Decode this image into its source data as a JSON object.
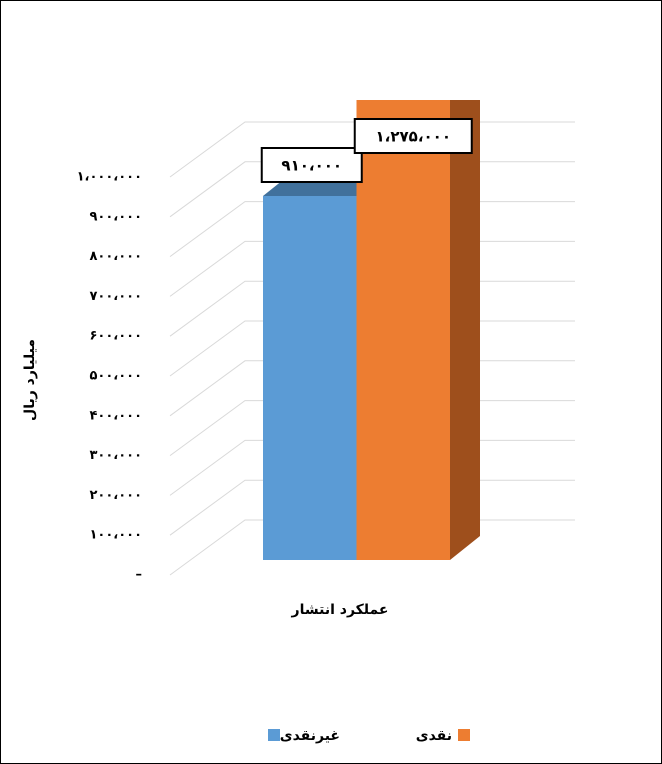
{
  "chart_data": {
    "type": "bar3d",
    "y_label": "میلیارد ریال",
    "categories": [
      "عملکرد انتشار"
    ],
    "series": [
      {
        "name": "غیرنقدی",
        "color": "#5b9bd5",
        "side_color": "#41719c",
        "values": [
          910000
        ],
        "value_labels": [
          "۹۱۰،۰۰۰"
        ]
      },
      {
        "name": "نقدی",
        "color": "#ed7d31",
        "side_color": "#9e4f1c",
        "values": [
          1275000
        ],
        "value_labels": [
          "۱،۲۷۵،۰۰۰"
        ]
      }
    ],
    "ylim": [
      0,
      1000000
    ],
    "yticks": [
      {
        "value": 0,
        "label": "–"
      },
      {
        "value": 100000,
        "label": "۱۰۰،۰۰۰"
      },
      {
        "value": 200000,
        "label": "۲۰۰،۰۰۰"
      },
      {
        "value": 300000,
        "label": "۳۰۰،۰۰۰"
      },
      {
        "value": 400000,
        "label": "۴۰۰،۰۰۰"
      },
      {
        "value": 500000,
        "label": "۵۰۰،۰۰۰"
      },
      {
        "value": 600000,
        "label": "۶۰۰،۰۰۰"
      },
      {
        "value": 700000,
        "label": "۷۰۰،۰۰۰"
      },
      {
        "value": 800000,
        "label": "۸۰۰،۰۰۰"
      },
      {
        "value": 900000,
        "label": "۹۰۰،۰۰۰"
      },
      {
        "value": 1000000,
        "label": "۱،۰۰۰،۰۰۰"
      }
    ],
    "grid": true
  }
}
